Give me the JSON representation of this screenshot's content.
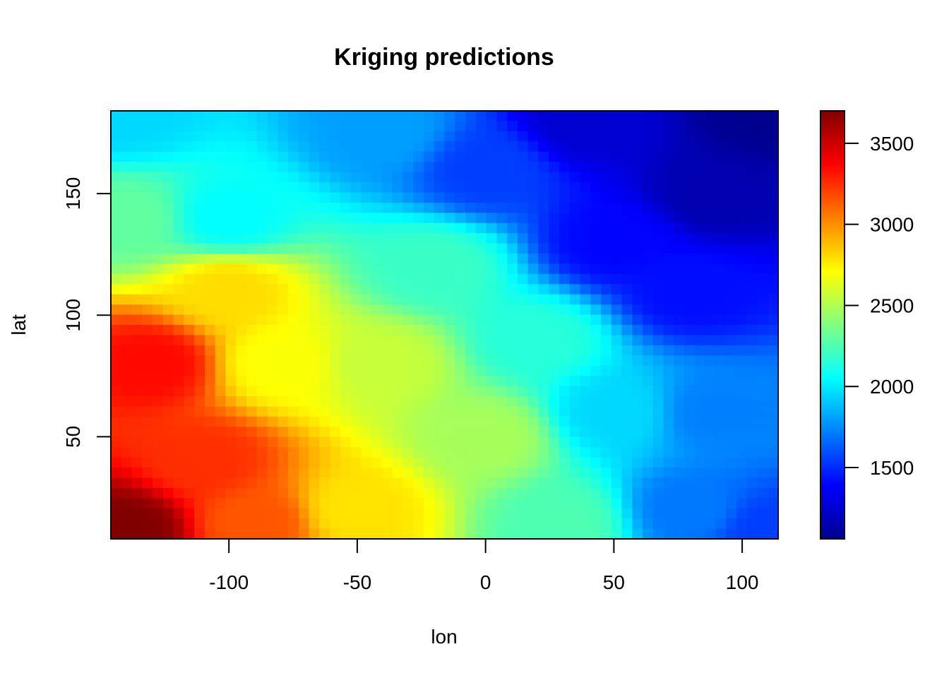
{
  "chart_data": {
    "type": "heatmap",
    "title": "Kriging predictions",
    "xlabel": "lon",
    "ylabel": "lat",
    "xlim": [
      -146,
      114
    ],
    "ylim": [
      8,
      184
    ],
    "x_ticks": [
      {
        "value": -100,
        "label": "-100"
      },
      {
        "value": -50,
        "label": "-50"
      },
      {
        "value": 0,
        "label": "0"
      },
      {
        "value": 50,
        "label": "50"
      },
      {
        "value": 100,
        "label": "100"
      }
    ],
    "y_ticks": [
      {
        "value": 50,
        "label": "50"
      },
      {
        "value": 100,
        "label": "100"
      },
      {
        "value": 150,
        "label": "150"
      }
    ],
    "colorbar": {
      "range": [
        1060,
        3700
      ],
      "palette": [
        "#00008F",
        "#0000FF",
        "#0080FF",
        "#00FFFF",
        "#80FF80",
        "#FFFF00",
        "#FF8000",
        "#FF0000",
        "#800000"
      ],
      "ticks": [
        {
          "value": 1500,
          "label": "1500"
        },
        {
          "value": 2000,
          "label": "2000"
        },
        {
          "value": 2500,
          "label": "2500"
        },
        {
          "value": 3000,
          "label": "3000"
        },
        {
          "value": 3500,
          "label": "3500"
        }
      ]
    },
    "grid": false,
    "surface_samples": [
      {
        "lon": -140,
        "lat": 12,
        "value": 3700
      },
      {
        "lon": -130,
        "lat": 80,
        "value": 3350
      },
      {
        "lon": -110,
        "lat": 40,
        "value": 3250
      },
      {
        "lon": -140,
        "lat": 140,
        "value": 2300
      },
      {
        "lon": -140,
        "lat": 182,
        "value": 1950
      },
      {
        "lon": -80,
        "lat": 80,
        "value": 2700
      },
      {
        "lon": -50,
        "lat": 20,
        "value": 2780
      },
      {
        "lon": -40,
        "lat": 80,
        "value": 2560
      },
      {
        "lon": -20,
        "lat": 120,
        "value": 2200
      },
      {
        "lon": -40,
        "lat": 175,
        "value": 1800
      },
      {
        "lon": 0,
        "lat": 50,
        "value": 2480
      },
      {
        "lon": 20,
        "lat": 90,
        "value": 2150
      },
      {
        "lon": 0,
        "lat": 160,
        "value": 1550
      },
      {
        "lon": 40,
        "lat": 180,
        "value": 1250
      },
      {
        "lon": 50,
        "lat": 60,
        "value": 1950
      },
      {
        "lon": 50,
        "lat": 130,
        "value": 1400
      },
      {
        "lon": 80,
        "lat": 20,
        "value": 1700
      },
      {
        "lon": 90,
        "lat": 60,
        "value": 1720
      },
      {
        "lon": 80,
        "lat": 110,
        "value": 1420
      },
      {
        "lon": 90,
        "lat": 150,
        "value": 1150
      },
      {
        "lon": 110,
        "lat": 182,
        "value": 1060
      },
      {
        "lon": 110,
        "lat": 12,
        "value": 1550
      },
      {
        "lon": -100,
        "lat": 140,
        "value": 2050
      },
      {
        "lon": 30,
        "lat": 15,
        "value": 2250
      },
      {
        "lon": -100,
        "lat": 110,
        "value": 2800
      },
      {
        "lon": -90,
        "lat": 15,
        "value": 3150
      }
    ]
  }
}
